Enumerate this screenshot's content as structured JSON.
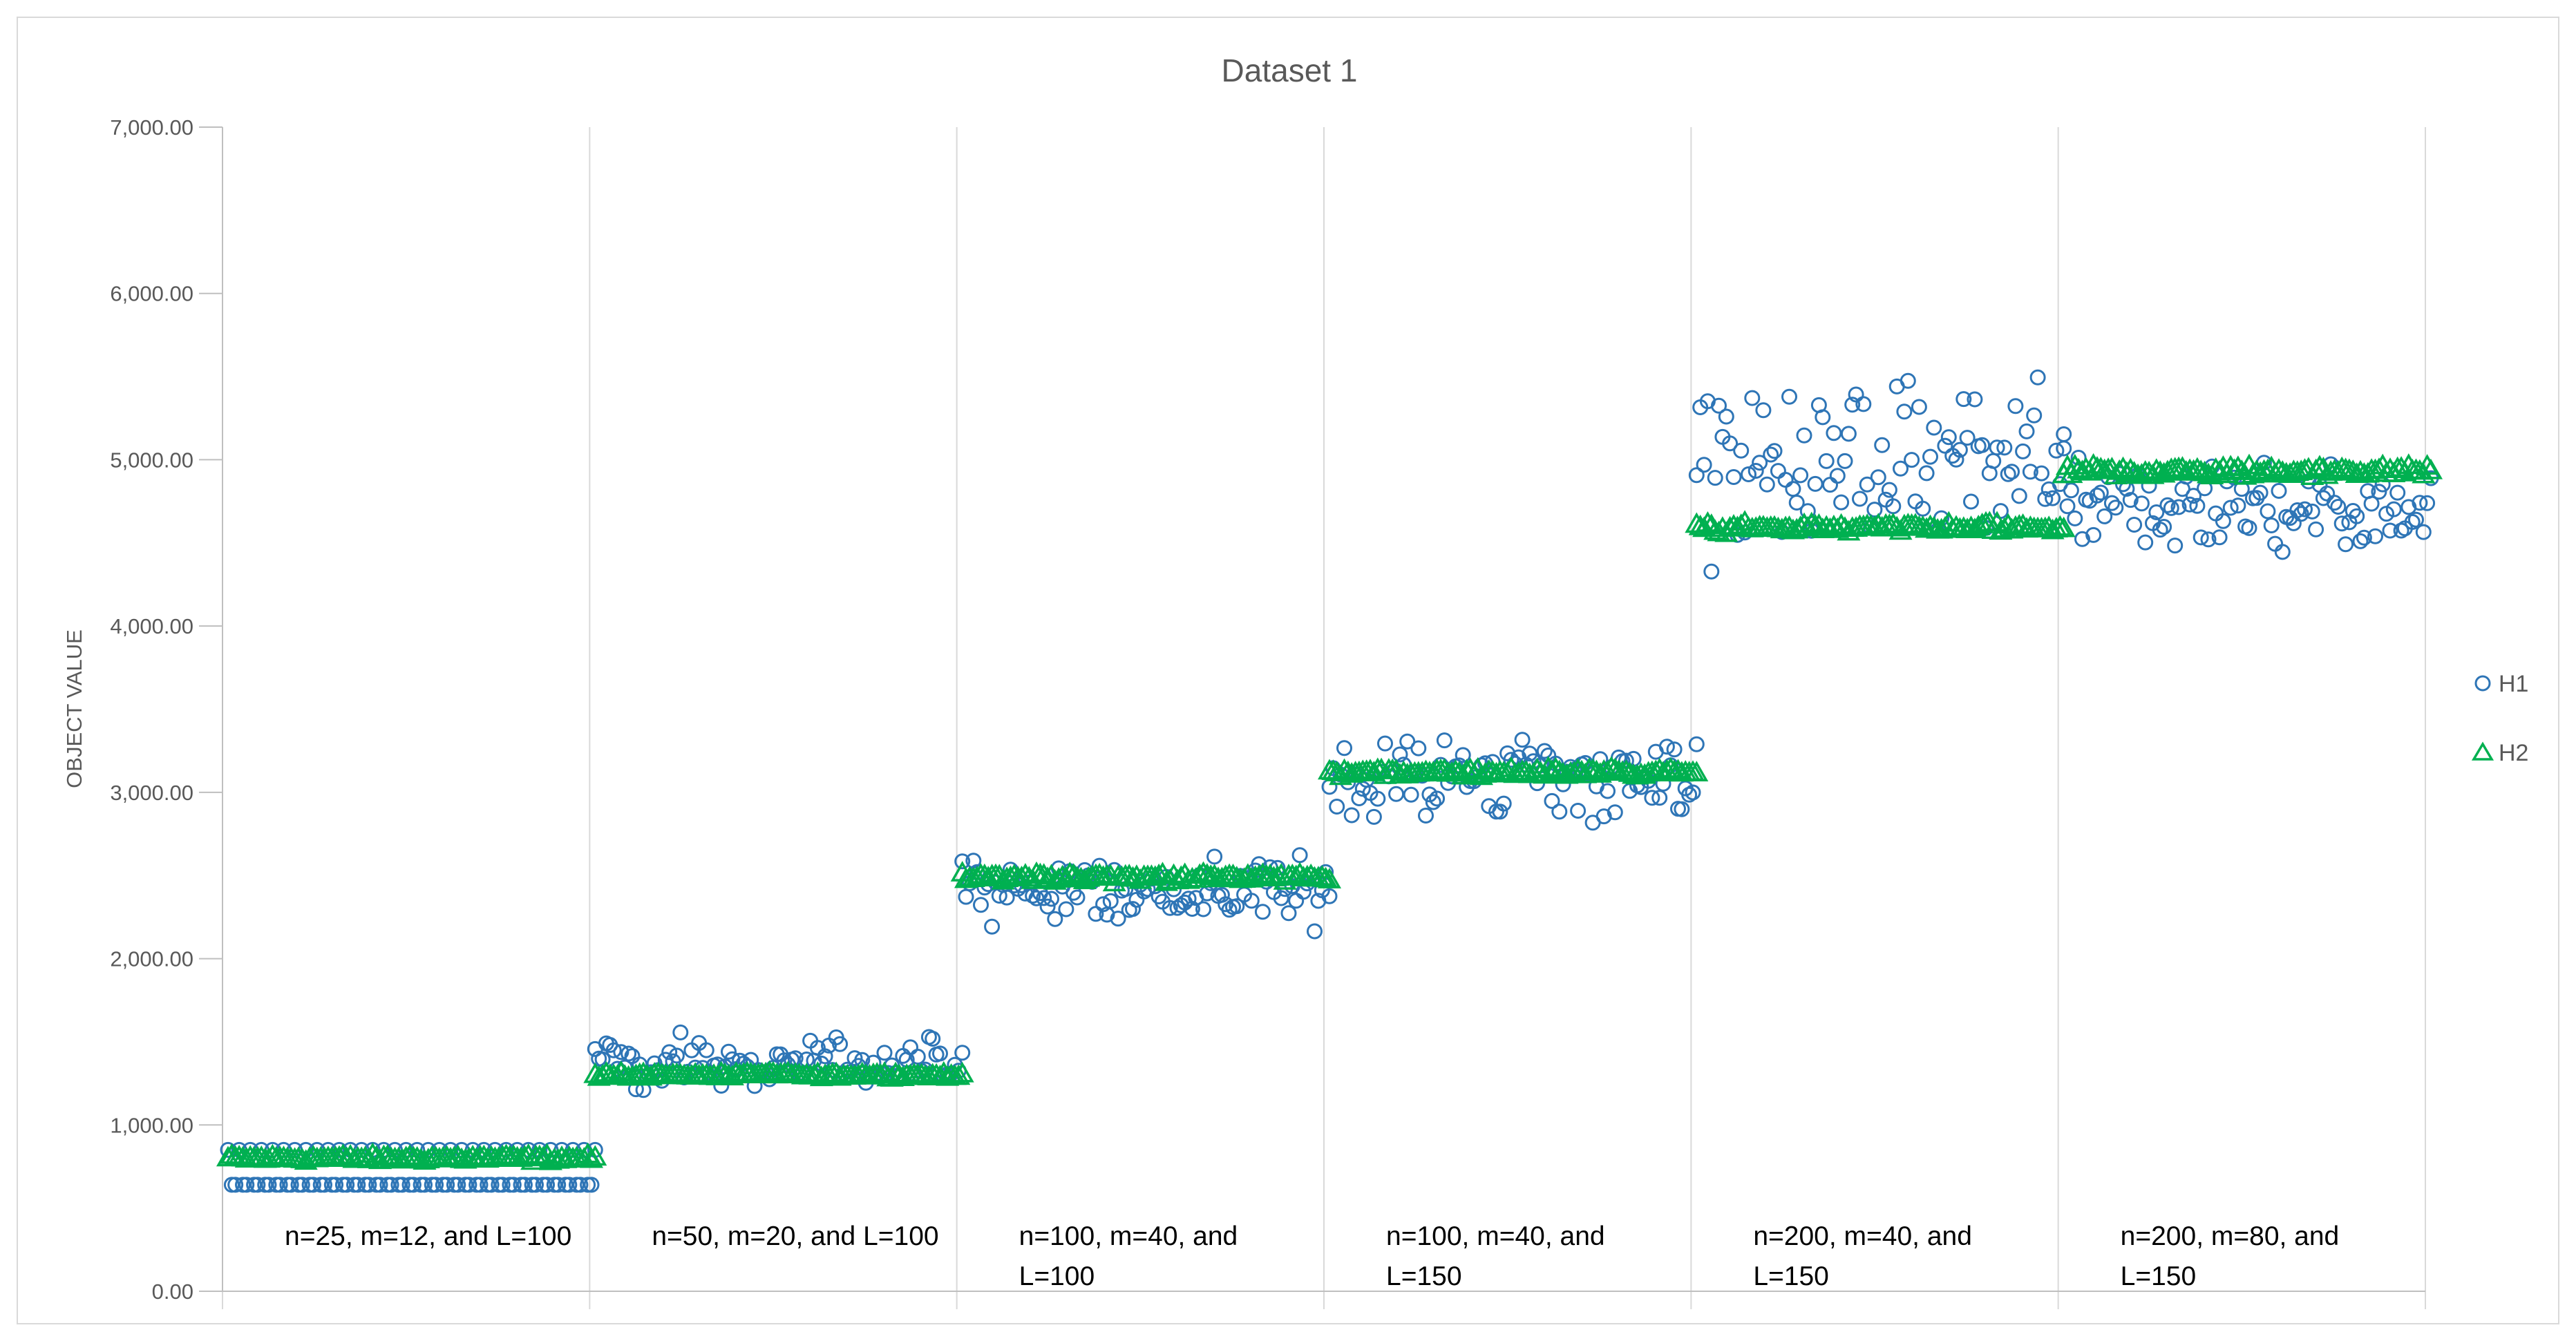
{
  "chart_data": {
    "type": "scatter",
    "title": "Dataset 1",
    "xlabel": "",
    "ylabel": "OBJECT VALUE",
    "ylim": [
      0,
      7000
    ],
    "yticks": [
      "0.00",
      "1,000.00",
      "2,000.00",
      "3,000.00",
      "4,000.00",
      "5,000.00",
      "6,000.00",
      "7,000.00"
    ],
    "ytick_values": [
      0,
      1000,
      2000,
      3000,
      4000,
      5000,
      6000,
      7000
    ],
    "grid": "vertical group separators",
    "legend_position": "right",
    "groups": [
      {
        "label_lines": [
          "n=25, m=12, and L=100"
        ],
        "h1_levels": [
          640,
          850
        ],
        "h1_spread": 0,
        "h2_center": 800,
        "h2_spread": 30,
        "points": 100
      },
      {
        "label_lines": [
          "n=50, m=20, and L=100"
        ],
        "h1_center": 1370,
        "h1_spread": 130,
        "h2_center": 1300,
        "h2_spread": 20,
        "points": 100
      },
      {
        "label_lines": [
          "n=100, m=40, and",
          "L=100"
        ],
        "h1_center": 2400,
        "h1_spread": 170,
        "h2_center": 2490,
        "h2_spread": 40,
        "points": 100
      },
      {
        "label_lines": [
          "n=100, m=40, and",
          "L=150"
        ],
        "h1_center": 3100,
        "h1_spread": 220,
        "h2_center": 3120,
        "h2_spread": 35,
        "points": 100
      },
      {
        "label_lines": [
          "n=200, m=40, and",
          "L=150"
        ],
        "h1_center": 4950,
        "h1_spread": 480,
        "h2_center": 4590,
        "h2_spread": 40,
        "points": 100
      },
      {
        "label_lines": [
          "n=200, m=80, and",
          "L=150"
        ],
        "h1_center": 4720,
        "h1_spread": 260,
        "h2_center": 4930,
        "h2_spread": 50,
        "points": 100
      }
    ],
    "series": [
      {
        "name": "H1",
        "marker": "circle",
        "color": "#2e75b6"
      },
      {
        "name": "H2",
        "marker": "triangle",
        "color": "#00b050"
      }
    ]
  }
}
